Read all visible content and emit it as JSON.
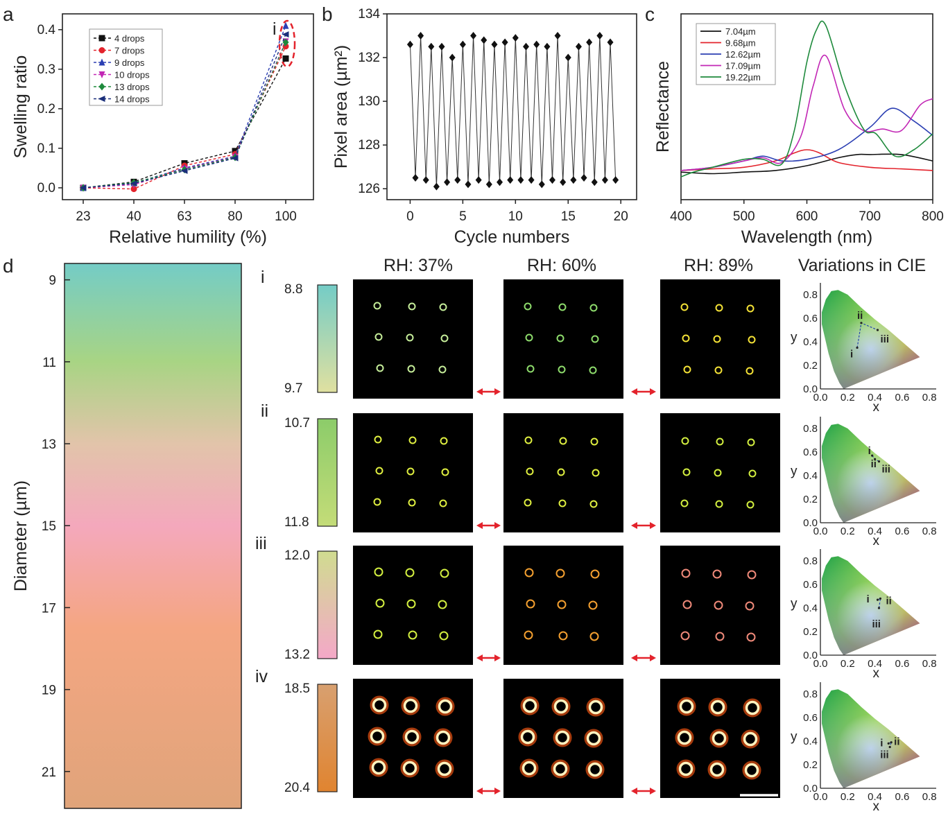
{
  "chart_data": [
    {
      "type": "line",
      "panel": "a",
      "xlabel": "Relative humility (%)",
      "ylabel": "Swelling ratio",
      "categories": [
        "23",
        "40",
        "63",
        "80",
        "100"
      ],
      "ylim": [
        -0.03,
        0.44
      ],
      "yticks": [
        "0.0",
        "0.1",
        "0.2",
        "0.3",
        "0.4"
      ],
      "annotation": "i",
      "series": [
        {
          "name": "4 drops",
          "color": "#111111",
          "marker": "square",
          "values": [
            0.0,
            0.015,
            0.062,
            0.093,
            0.327
          ]
        },
        {
          "name": "7 drops",
          "color": "#e3232c",
          "marker": "circle",
          "values": [
            0.0,
            -0.003,
            0.056,
            0.085,
            0.358
          ]
        },
        {
          "name": "9 drops",
          "color": "#2b3fb3",
          "marker": "triangle-up",
          "values": [
            0.0,
            0.012,
            0.05,
            0.08,
            0.41
          ]
        },
        {
          "name": "10 drops",
          "color": "#c227b5",
          "marker": "triangle-down",
          "values": [
            0.0,
            0.008,
            0.048,
            0.078,
            0.37
          ]
        },
        {
          "name": "13 drops",
          "color": "#1e8a3c",
          "marker": "diamond",
          "values": [
            0.0,
            0.013,
            0.046,
            0.077,
            0.368
          ]
        },
        {
          "name": "14 drops",
          "color": "#1b2f7a",
          "marker": "triangle-left",
          "values": [
            0.0,
            0.011,
            0.043,
            0.075,
            0.388
          ]
        }
      ]
    },
    {
      "type": "line",
      "panel": "b",
      "xlabel": "Cycle numbers",
      "ylabel": "Pixel area (µm²)",
      "xlim": [
        -2.2,
        21.5
      ],
      "ylim": [
        125.5,
        134.0
      ],
      "xticks": [
        "0",
        "5",
        "10",
        "15",
        "20"
      ],
      "yticks": [
        "126",
        "128",
        "130",
        "132",
        "134"
      ],
      "x": [
        0,
        0.5,
        1,
        1.5,
        2,
        2.5,
        3,
        3.5,
        4,
        4.5,
        5,
        5.5,
        6,
        6.5,
        7,
        7.5,
        8,
        8.5,
        9,
        9.5,
        10,
        10.5,
        11,
        11.5,
        12,
        12.5,
        13,
        13.5,
        14,
        14.5,
        15,
        15.5,
        16,
        16.5,
        17,
        17.5,
        18,
        18.5,
        19,
        19.5
      ],
      "y": [
        132.6,
        126.5,
        133.0,
        126.4,
        132.5,
        126.1,
        132.5,
        126.3,
        132.0,
        126.4,
        132.6,
        126.2,
        133.0,
        126.4,
        132.8,
        126.2,
        132.6,
        126.3,
        132.7,
        126.4,
        132.9,
        126.4,
        132.5,
        126.4,
        132.6,
        126.2,
        132.5,
        126.4,
        133.0,
        126.3,
        132.0,
        126.4,
        132.5,
        126.5,
        132.7,
        126.3,
        133.0,
        126.4,
        132.7,
        126.4
      ]
    },
    {
      "type": "line",
      "panel": "c",
      "xlabel": "Wavelength (nm)",
      "ylabel": "Reflectance",
      "xlim": [
        400,
        800
      ],
      "xticks": [
        "400",
        "500",
        "600",
        "700",
        "800"
      ],
      "series": [
        {
          "name": "7.04µm",
          "color": "#111111",
          "x": [
            400,
            450,
            500,
            550,
            600,
            650,
            680,
            700,
            750,
            800
          ],
          "y": [
            0.06,
            0.05,
            0.06,
            0.07,
            0.1,
            0.15,
            0.17,
            0.17,
            0.17,
            0.13
          ]
        },
        {
          "name": "9.68µm",
          "color": "#e3232c",
          "x": [
            400,
            450,
            500,
            550,
            580,
            600,
            620,
            650,
            700,
            750,
            800
          ],
          "y": [
            0.07,
            0.08,
            0.09,
            0.13,
            0.18,
            0.2,
            0.18,
            0.12,
            0.09,
            0.08,
            0.07
          ]
        },
        {
          "name": "12.62µm",
          "color": "#2b3fb3",
          "x": [
            400,
            450,
            500,
            530,
            560,
            600,
            650,
            700,
            735,
            770,
            800
          ],
          "y": [
            0.07,
            0.09,
            0.13,
            0.16,
            0.13,
            0.14,
            0.2,
            0.34,
            0.46,
            0.38,
            0.29
          ]
        },
        {
          "name": "17.09µm",
          "color": "#c227b5",
          "x": [
            400,
            450,
            500,
            530,
            560,
            590,
            610,
            630,
            660,
            690,
            720,
            750,
            780,
            800
          ],
          "y": [
            0.07,
            0.09,
            0.13,
            0.15,
            0.12,
            0.28,
            0.6,
            0.79,
            0.45,
            0.32,
            0.33,
            0.32,
            0.48,
            0.52
          ]
        },
        {
          "name": "19.22µm",
          "color": "#1e8a3c",
          "x": [
            400,
            420,
            450,
            500,
            530,
            560,
            580,
            600,
            615,
            630,
            660,
            690,
            710,
            740,
            770,
            800
          ],
          "y": [
            0.03,
            0.06,
            0.09,
            0.14,
            0.14,
            0.11,
            0.32,
            0.75,
            0.95,
            0.98,
            0.6,
            0.33,
            0.3,
            0.16,
            0.2,
            0.3
          ]
        }
      ]
    },
    {
      "type": "heatmap",
      "panel": "d",
      "ylabel": "Diameter (µm)",
      "yticks": [
        "9",
        "11",
        "13",
        "15",
        "17",
        "19",
        "21"
      ],
      "gradient": [
        {
          "d": 8.6,
          "color": "#74ccc6"
        },
        {
          "d": 11.0,
          "color": "#a8d484"
        },
        {
          "d": 13.0,
          "color": "#e2c4aa"
        },
        {
          "d": 15.0,
          "color": "#f4a8bc"
        },
        {
          "d": 17.5,
          "color": "#f4a682"
        },
        {
          "d": 21.9,
          "color": "#e0a47a"
        }
      ]
    }
  ],
  "panel_labels": {
    "a": "a",
    "b": "b",
    "c": "c",
    "d": "d"
  },
  "grid": {
    "columns": [
      "RH: 37%",
      "RH: 60%",
      "RH: 89%"
    ],
    "cie_title": "Variations in CIE",
    "cie_xlabel": "x",
    "cie_ylabel": "y",
    "cie_ticks": [
      "0.0",
      "0.2",
      "0.4",
      "0.6",
      "0.8"
    ],
    "rows": [
      {
        "label": "i",
        "top": "8.8",
        "bottom": "9.7",
        "bar_top": "#74ccc6",
        "bar_bottom": "#e0e0a0",
        "ring_colors": [
          "#c6ee9a",
          "#8edc6c",
          "#f4e236"
        ],
        "cie_labels": [
          "i",
          "ii",
          "iii"
        ]
      },
      {
        "label": "ii",
        "top": "10.7",
        "bottom": "11.8",
        "bar_top": "#8ccc6a",
        "bar_bottom": "#c4dc78",
        "ring_colors": [
          "#e0f040",
          "#e0f040",
          "#d4f040"
        ],
        "cie_labels": [
          "i",
          "ii",
          "iii"
        ]
      },
      {
        "label": "iii",
        "top": "12.0",
        "bottom": "13.2",
        "bar_top": "#d0dc90",
        "bar_bottom": "#f4a8c8",
        "ring_colors": [
          "#d4f040",
          "#f4a030",
          "#f08a7a"
        ],
        "cie_labels": [
          "i",
          "ii",
          "iii"
        ]
      },
      {
        "label": "iv",
        "top": "18.5",
        "bottom": "20.4",
        "bar_top": "#d8a070",
        "bar_bottom": "#e08430",
        "ring_colors": [
          "#f0a040",
          "#f0a040",
          "#f0a040"
        ],
        "cie_labels": [
          "i",
          "ii",
          "iii"
        ]
      }
    ]
  }
}
